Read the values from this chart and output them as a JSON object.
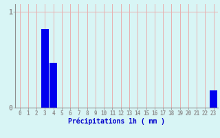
{
  "hours": [
    0,
    1,
    2,
    3,
    4,
    5,
    6,
    7,
    8,
    9,
    10,
    11,
    12,
    13,
    14,
    15,
    16,
    17,
    18,
    19,
    20,
    21,
    22,
    23
  ],
  "values": [
    0,
    0,
    0,
    0.82,
    0.47,
    0,
    0,
    0,
    0,
    0,
    0,
    0,
    0,
    0,
    0,
    0,
    0,
    0,
    0,
    0,
    0,
    0,
    0,
    0.18
  ],
  "bar_color": "#0000EE",
  "background_color": "#D8F5F5",
  "grid_color": "#E8B0B0",
  "axis_color": "#909090",
  "text_color": "#0000CC",
  "xlabel": "Précipitations 1h ( mm )",
  "ylim": [
    0,
    1.08
  ],
  "yticks": [
    0,
    1
  ],
  "ytick_labels": [
    "0",
    "1"
  ],
  "bar_width": 0.85,
  "tick_fontsize": 5.5,
  "xlabel_fontsize": 7.0,
  "ytick_fontsize": 7.0
}
